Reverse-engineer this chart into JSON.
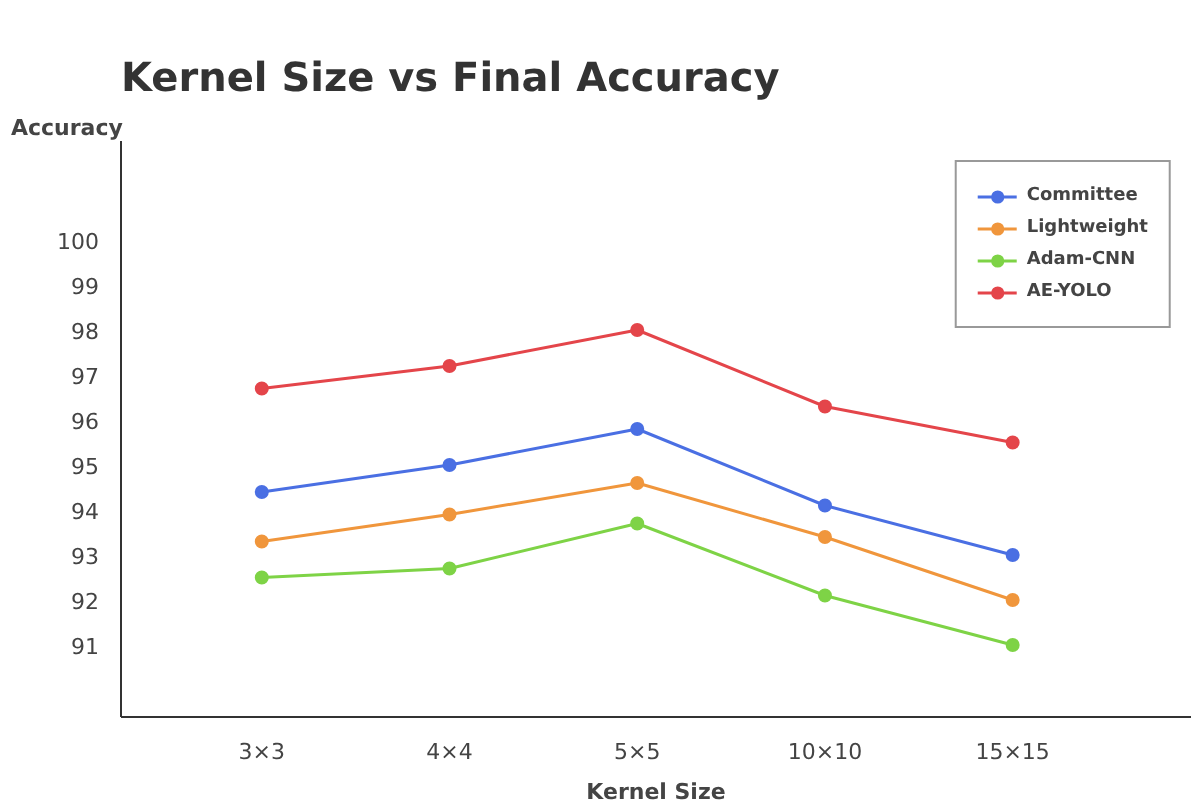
{
  "chart_data": {
    "type": "line",
    "title": "Kernel Size vs Final Accuracy",
    "xlabel": "Kernel Size",
    "ylabel": "Accuracy",
    "categories": [
      "3×3",
      "4×4",
      "5×5",
      "10×10",
      "15×15"
    ],
    "series": [
      {
        "name": "Committee",
        "color": "#4a6fe3",
        "values": [
          94.4,
          95.0,
          95.8,
          94.1,
          93.0
        ]
      },
      {
        "name": "Lightweight",
        "color": "#f0963c",
        "values": [
          93.3,
          93.9,
          94.6,
          93.4,
          92.0
        ]
      },
      {
        "name": "Adam-CNN",
        "color": "#7ed346",
        "values": [
          92.5,
          92.7,
          93.7,
          92.1,
          91.0
        ]
      },
      {
        "name": "AE-YOLO",
        "color": "#e4454a",
        "values": [
          96.7,
          97.2,
          98.0,
          96.3,
          95.5
        ]
      }
    ],
    "ylim": [
      89.4,
      102.2
    ],
    "yticks": [
      91,
      92,
      93,
      94,
      95,
      96,
      97,
      98,
      99,
      100
    ],
    "legend": "top right",
    "marker": "circle",
    "line_style": "solid",
    "grid": false
  }
}
